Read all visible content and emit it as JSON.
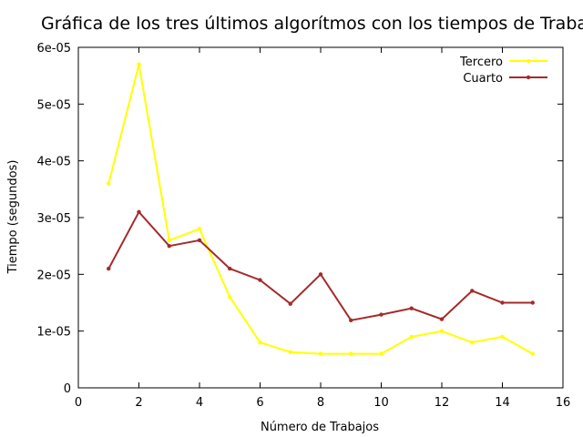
{
  "chart_data": {
    "type": "line",
    "title": "Gráfica de los tres últimos algorítmos con los tiempos de Trabajos",
    "xlabel": "Número de Trabajos",
    "ylabel": "Tiempo (segundos)",
    "xlim": [
      0,
      16
    ],
    "ylim": [
      0,
      6e-05
    ],
    "xticks": [
      0,
      2,
      4,
      6,
      8,
      10,
      12,
      14,
      16
    ],
    "xtick_labels": [
      "0",
      "2",
      "4",
      "6",
      "8",
      "10",
      "12",
      "14",
      "16"
    ],
    "yticks": [
      0,
      1e-05,
      2e-05,
      3e-05,
      4e-05,
      5e-05,
      6e-05
    ],
    "ytick_labels": [
      "0",
      "1e-05",
      "2e-05",
      "3e-05",
      "4e-05",
      "5e-05",
      "6e-05"
    ],
    "grid": false,
    "legend_position": "top-right",
    "series": [
      {
        "name": "Tercero",
        "color": "#ffff00",
        "x": [
          1,
          2,
          3,
          4,
          5,
          6,
          7,
          8,
          9,
          10,
          11,
          12,
          13,
          14,
          15
        ],
        "values": [
          3.6e-05,
          5.7e-05,
          2.6e-05,
          2.8e-05,
          1.6e-05,
          8e-06,
          6.3e-06,
          6e-06,
          6e-06,
          6e-06,
          9e-06,
          1e-05,
          8e-06,
          9e-06,
          6e-06
        ]
      },
      {
        "name": "Cuarto",
        "color": "#a52a2a",
        "x": [
          1,
          2,
          3,
          4,
          5,
          6,
          7,
          8,
          9,
          10,
          11,
          12,
          13,
          14,
          15
        ],
        "values": [
          2.1e-05,
          3.1e-05,
          2.5e-05,
          2.6e-05,
          2.1e-05,
          1.9e-05,
          1.48e-05,
          2e-05,
          1.19e-05,
          1.29e-05,
          1.4e-05,
          1.21e-05,
          1.71e-05,
          1.5e-05,
          1.5e-05
        ]
      }
    ]
  }
}
